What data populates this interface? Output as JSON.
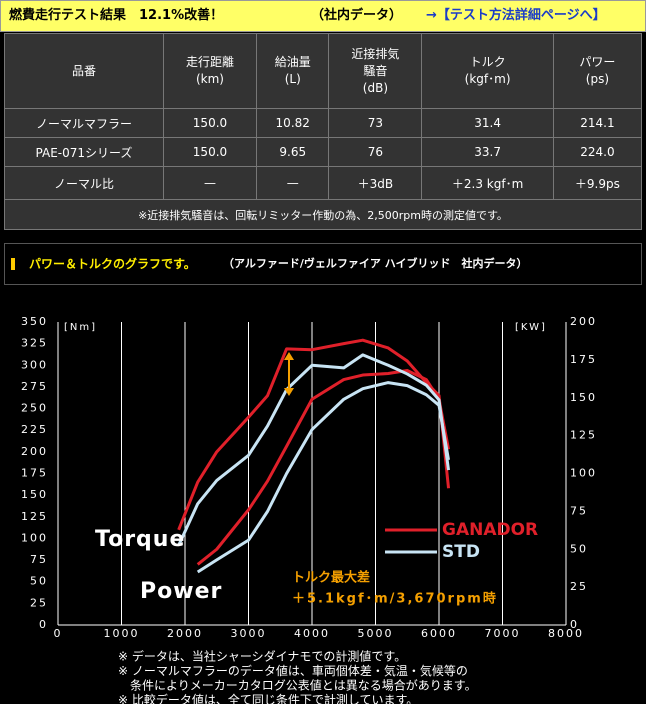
{
  "header": {
    "title": "燃費走行テスト結果　12.1%改善！",
    "subtitle": "（社内データ）",
    "link": "→【テスト方法詳細ページへ】"
  },
  "table": {
    "columns": [
      [
        "品番"
      ],
      [
        "走行距離",
        "(km)"
      ],
      [
        "給油量",
        "(L)"
      ],
      [
        "近接排気",
        "騒音",
        "(dB)"
      ],
      [
        "トルク",
        "(kgf･m)"
      ],
      [
        "パワー",
        "(ps)"
      ]
    ],
    "rows": [
      [
        "ノーマルマフラー",
        "150.0",
        "10.82",
        "73",
        "31.4",
        "214.1"
      ],
      [
        "PAE-071シリーズ",
        "150.0",
        "9.65",
        "76",
        "33.7",
        "224.0"
      ],
      [
        "ノーマル比",
        "—",
        "—",
        "＋3dB",
        "＋2.3 kgf･m",
        "＋9.9ps"
      ]
    ],
    "note": "※近接排気騒音は、回転リミッター作動の為、2,500rpm時の測定値です。"
  },
  "section": {
    "title": "パワー＆トルクのグラフです。",
    "subtitle": "（アルファード/ヴェルファイア ハイブリッド　社内データ）"
  },
  "graph": {
    "type": "line",
    "y_label": "[Nm]",
    "y2_label": "[KW]",
    "xlim": [
      0,
      8000
    ],
    "xticks": [
      0,
      1000,
      2000,
      3000,
      4000,
      5000,
      6000,
      7000,
      8000
    ],
    "ylim": [
      0,
      350
    ],
    "yticks": [
      0,
      25,
      50,
      75,
      100,
      125,
      150,
      175,
      200,
      225,
      250,
      275,
      300,
      325,
      350
    ],
    "y2lim": [
      0,
      200
    ],
    "y2ticks": [
      0,
      25,
      50,
      75,
      100,
      125,
      150,
      175,
      200
    ],
    "grid": true,
    "x": [
      1900,
      2200,
      2500,
      3000,
      3300,
      3600,
      4000,
      4500,
      4800,
      5200,
      5500,
      5800,
      6000,
      6150
    ],
    "series": [
      {
        "name": "GANADOR",
        "color": "#e0202a",
        "torque": [
          110,
          165,
          200,
          240,
          265,
          319,
          318,
          325,
          329,
          320,
          305,
          280,
          265,
          158
        ],
        "power": [
          null,
          40,
          50,
          76,
          95,
          118,
          149,
          162,
          165,
          166,
          168,
          162,
          149,
          116
        ]
      },
      {
        "name": "STD",
        "color": "#c8e4f4",
        "torque": [
          92,
          140,
          167,
          196,
          230,
          272,
          300,
          297,
          312,
          300,
          290,
          277,
          260,
          179
        ],
        "power": [
          null,
          35,
          43,
          56,
          75,
          100,
          129,
          149,
          156,
          160,
          158,
          152,
          145,
          109
        ]
      }
    ],
    "curve_labels": [
      "Torque",
      "Power"
    ],
    "annotation": [
      "トルク最大差",
      "＋5.1kgf･m/3,670rpm時"
    ]
  },
  "notes": [
    "※ データは、当社シャーシダイナモでの計測値です。",
    "※ ノーマルマフラーのデータ値は、車両個体差・気温・気候等の",
    "条件によりメーカーカタログ公表値とは異なる場合があります。",
    "※ 比較データ値は、全て同じ条件下で計測しています。"
  ]
}
